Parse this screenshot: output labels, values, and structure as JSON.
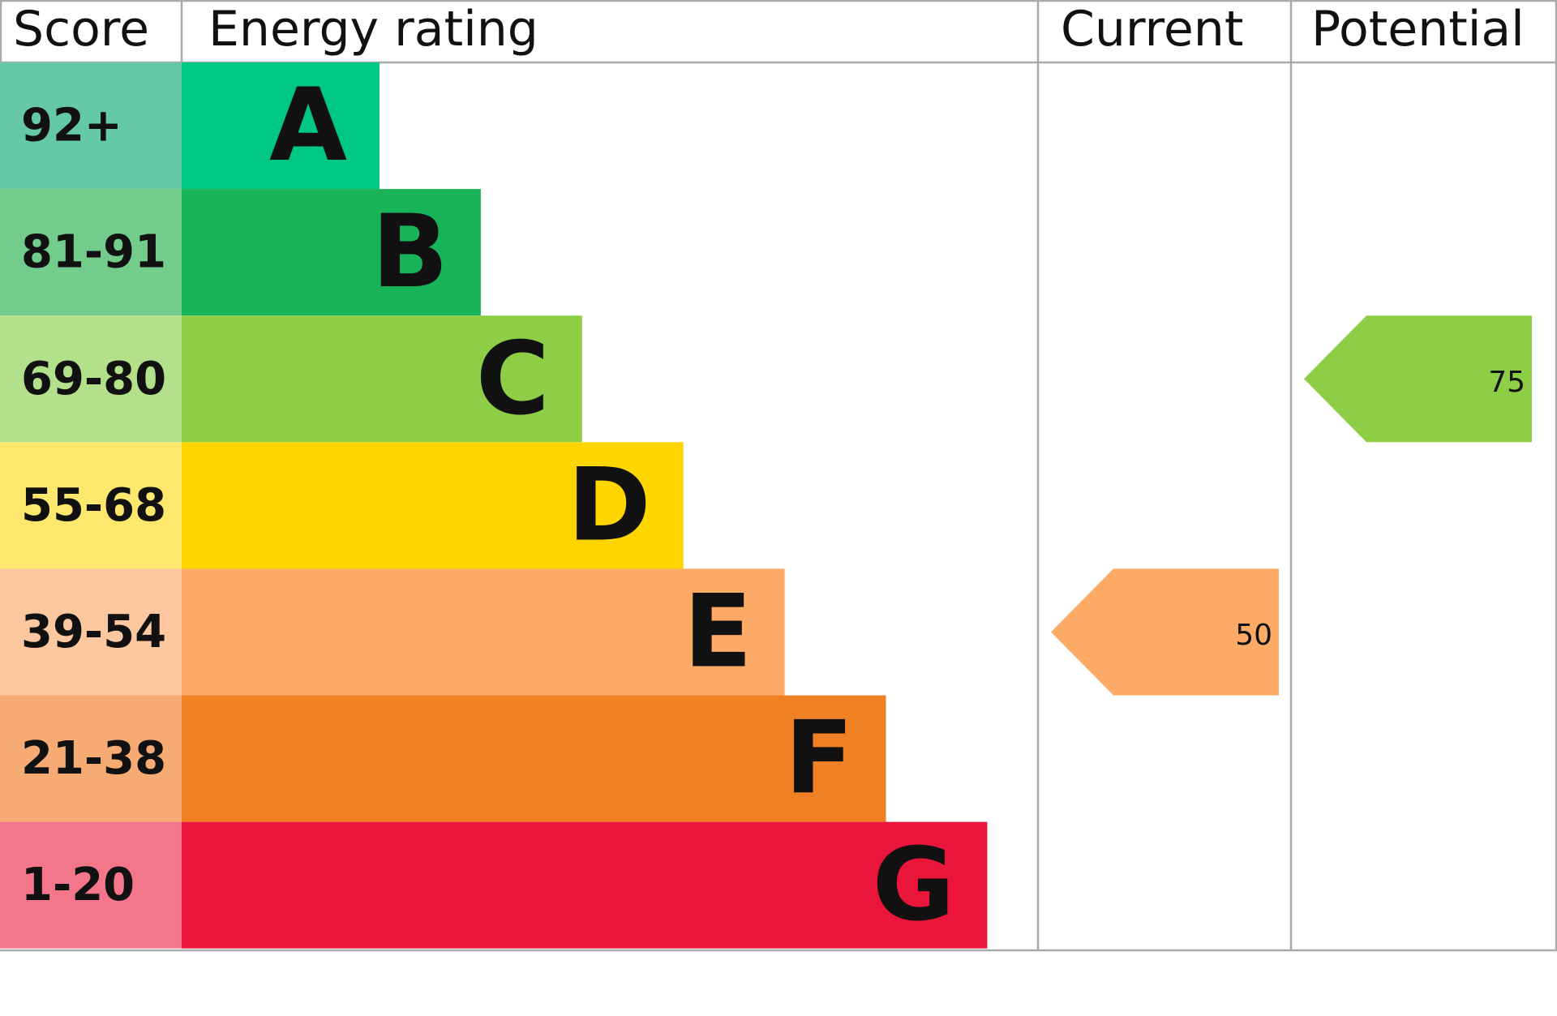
{
  "header": {
    "score": "Score",
    "energy_rating": "Energy rating",
    "current": "Current",
    "potential": "Potential"
  },
  "bands": [
    {
      "score": "92+",
      "letter": "A",
      "color": "#00c781",
      "score_color": "#66c9a6"
    },
    {
      "score": "81-91",
      "letter": "B",
      "color": "#19b459",
      "score_color": "#73cb8c"
    },
    {
      "score": "69-80",
      "letter": "C",
      "color": "#8dce46",
      "score_color": "#b3e08a"
    },
    {
      "score": "55-68",
      "letter": "D",
      "color": "#ffd500",
      "score_color": "#fde86d"
    },
    {
      "score": "39-54",
      "letter": "E",
      "color": "#fcaa65",
      "score_color": "#fdc79f"
    },
    {
      "score": "21-38",
      "letter": "F",
      "color": "#ef8023",
      "score_color": "#f5ab73"
    },
    {
      "score": "1-20",
      "letter": "G",
      "color": "#e9153b",
      "score_color": "#f3768b"
    }
  ],
  "current": {
    "value": 50
  },
  "potential": {
    "value": 75
  }
}
